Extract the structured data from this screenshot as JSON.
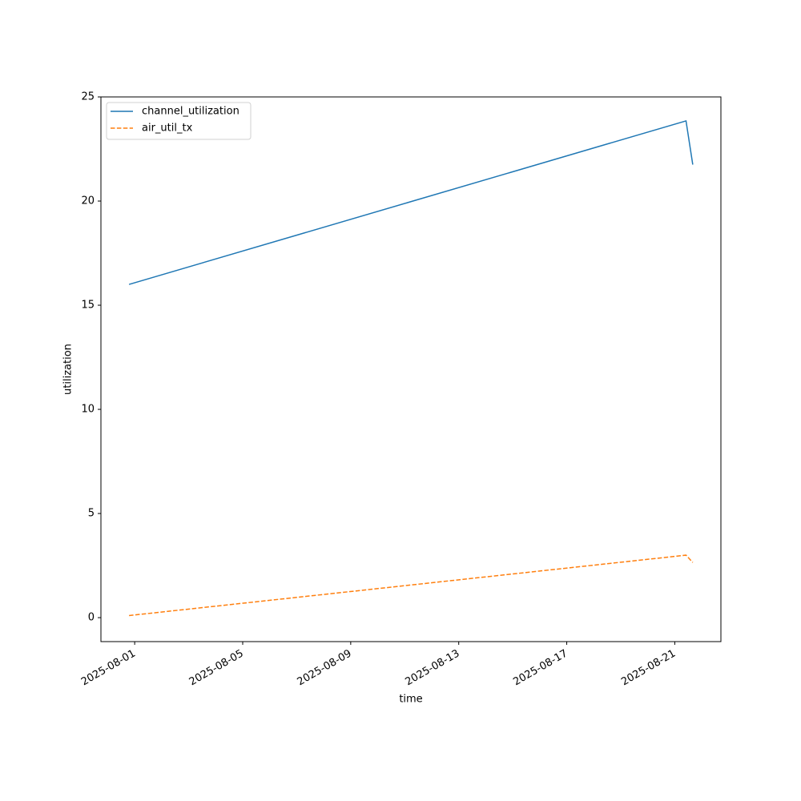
{
  "chart_data": {
    "type": "line",
    "x_label": "time",
    "y_label": "utilization",
    "x": [
      "2025-07-31T19:00:00Z",
      "2025-08-21T10:00:00Z",
      "2025-08-21T16:00:00Z"
    ],
    "series": [
      {
        "name": "channel_utilization",
        "color": "#1f77b4",
        "dash": "solid",
        "values": [
          16.0,
          23.85,
          21.75
        ]
      },
      {
        "name": "air_util_tx",
        "color": "#ff7f0e",
        "dash": "dashed",
        "values": [
          0.1,
          3.0,
          2.65
        ]
      }
    ],
    "xlim": [
      "2025-07-30T18:00:00Z",
      "2025-08-22T17:00:00Z"
    ],
    "xticks": [
      "2025-08-01",
      "2025-08-05",
      "2025-08-09",
      "2025-08-13",
      "2025-08-17",
      "2025-08-21"
    ],
    "ylim": [
      -1.15,
      25
    ],
    "yticks": [
      0,
      5,
      10,
      15,
      20,
      25
    ],
    "grid": false,
    "legend": "upper left"
  }
}
